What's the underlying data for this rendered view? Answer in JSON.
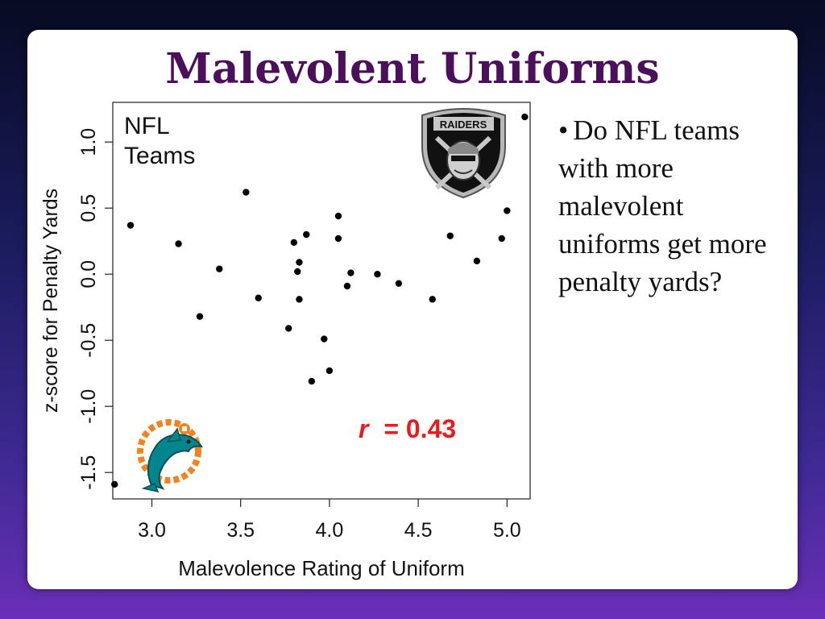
{
  "slide": {
    "title": "Malevolent Uniforms",
    "bullet": "Do NFL teams with more malevolent uniforms get more penalty yards?"
  },
  "colors": {
    "title": "#4b0f5c",
    "r_value": "#e81c1c",
    "points": "#000000"
  },
  "icons": {
    "team_logo_top_right": "raiders-shield-logo",
    "team_logo_bottom_left": "dolphins-logo"
  },
  "chart_data": {
    "type": "scatter",
    "xlabel": "Malevolence Rating of Uniform",
    "ylabel": "z-score for Penalty Yards",
    "xlim": [
      2.78,
      5.13
    ],
    "ylim": [
      -1.7,
      1.3
    ],
    "x_ticks": [
      "3.0",
      "3.5",
      "4.0",
      "4.5",
      "5.0"
    ],
    "y_ticks": [
      "-1.5",
      "-1.0",
      "-0.5",
      "0.0",
      "0.5",
      "1.0"
    ],
    "grid": false,
    "annotation_label": "NFL Teams",
    "r_symbol": "r",
    "r_value_text": " = 0.43",
    "raiders_label": "RAIDERS",
    "points": [
      [
        2.79,
        -1.59
      ],
      [
        2.88,
        0.37
      ],
      [
        3.15,
        0.23
      ],
      [
        3.27,
        -0.32
      ],
      [
        3.38,
        0.04
      ],
      [
        3.53,
        0.62
      ],
      [
        3.6,
        -0.18
      ],
      [
        3.77,
        -0.41
      ],
      [
        3.8,
        0.24
      ],
      [
        3.82,
        0.02
      ],
      [
        3.83,
        0.09
      ],
      [
        3.83,
        -0.19
      ],
      [
        3.87,
        0.3
      ],
      [
        3.9,
        -0.81
      ],
      [
        3.97,
        -0.49
      ],
      [
        4.0,
        -0.73
      ],
      [
        4.05,
        0.44
      ],
      [
        4.05,
        0.27
      ],
      [
        4.1,
        -0.09
      ],
      [
        4.12,
        0.01
      ],
      [
        4.27,
        0.0
      ],
      [
        4.39,
        -0.07
      ],
      [
        4.58,
        -0.19
      ],
      [
        4.68,
        0.29
      ],
      [
        4.83,
        0.1
      ],
      [
        4.97,
        0.27
      ],
      [
        5.0,
        0.48
      ],
      [
        5.1,
        1.19
      ]
    ]
  }
}
